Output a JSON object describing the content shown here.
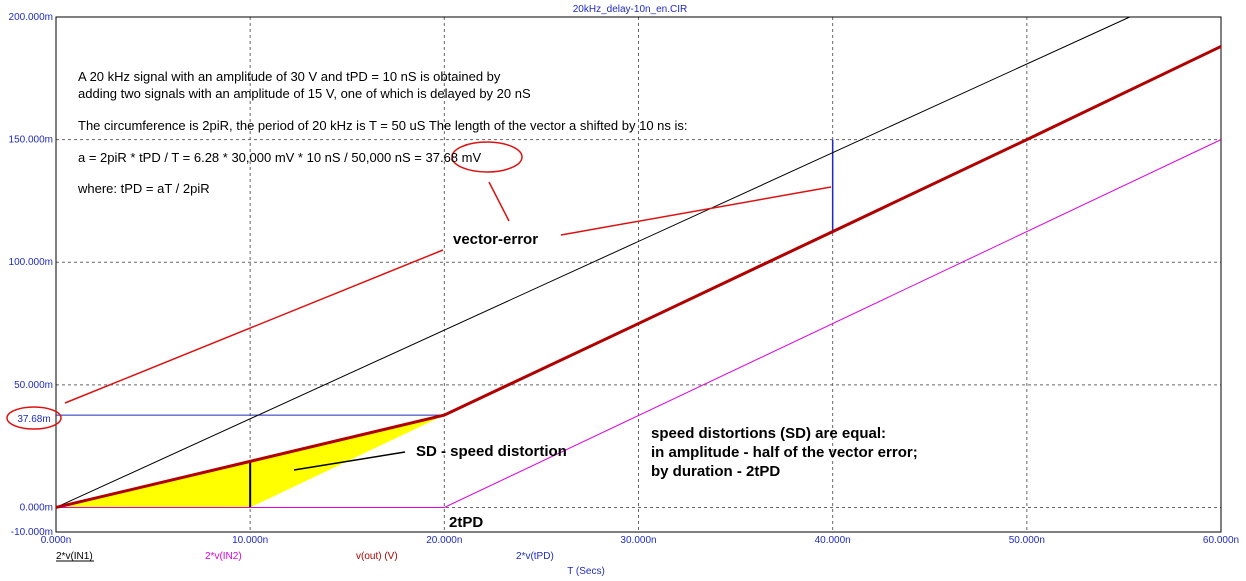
{
  "chart_data": {
    "type": "line",
    "title": "20kHz_delay-10n_en.CIR",
    "xlabel": "T (Secs)",
    "xlim": [
      0,
      60
    ],
    "ylim": [
      -10,
      200
    ],
    "x_ticks": [
      "0.000n",
      "10.000n",
      "20.000n",
      "30.000n",
      "40.000n",
      "50.000n",
      "60.000n"
    ],
    "x_tick_values": [
      0,
      10,
      20,
      30,
      40,
      50,
      60
    ],
    "y_ticks": [
      "-10.000m",
      "0.000m",
      "50.000m",
      "100.000m",
      "150.000m",
      "200.000m"
    ],
    "y_tick_values": [
      -10,
      0,
      50,
      100,
      150,
      200
    ],
    "grid": true,
    "legend_position": "bottom",
    "series": [
      {
        "name": "2*v(IN1)",
        "color": "#000000",
        "x": [
          0,
          55.3
        ],
        "y": [
          0,
          200
        ]
      },
      {
        "name": "2*v(IN2)",
        "color": "#e000e0",
        "x": [
          0,
          20,
          60
        ],
        "y": [
          0,
          0,
          150
        ]
      },
      {
        "name": "v(out) (V)",
        "color": "#b00000",
        "x": [
          0,
          10,
          20,
          30,
          40,
          50,
          60
        ],
        "y": [
          0,
          18.8,
          37.68,
          75,
          112.5,
          150,
          188
        ]
      },
      {
        "name": "2*v(tPD)",
        "color": "#1f2bbf",
        "x": [],
        "y": []
      }
    ],
    "annotations": {
      "para1_line1": "A 20 kHz signal with an amplitude of 30 V and tPD = 10 nS is obtained by",
      "para1_line2": "adding two signals with an amplitude of 15 V, one of which is delayed by 20 nS",
      "para2": "The circumference is 2piR, the period of 20 kHz is T = 50 uS The length of the vector a shifted by 10 ns is:",
      "formula": "a = 2piR * tPD / T = 6.28 * 30,000 mV * 10 nS / 50,000 nS = 37.68 mV",
      "where": "where: tPD = aT / 2piR",
      "vector_error": "vector-error",
      "sd_label": "SD - speed distortion",
      "sd_note_1": "speed distortions (SD) are equal:",
      "sd_note_2": "in amplitude - half of the vector error;",
      "sd_note_3": "by duration - 2tPD",
      "two_tpd": "2tPD",
      "y_marker": "37.68m",
      "y_marker_value": 37.68
    }
  }
}
